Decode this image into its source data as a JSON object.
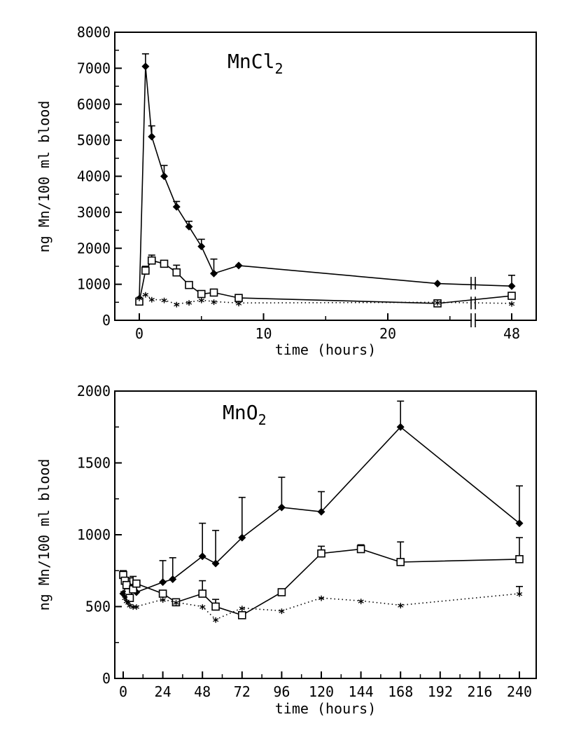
{
  "chart_data": [
    {
      "type": "line",
      "title": "MnCl",
      "title_subscript": "2",
      "xlabel": "time (hours)",
      "ylabel": "ng Mn/100 ml blood",
      "ylim": [
        0,
        8000
      ],
      "y_ticks": [
        "0",
        "1000",
        "2000",
        "3000",
        "4000",
        "5000",
        "6000",
        "7000",
        "8000"
      ],
      "x_ticks": [
        "0",
        "10",
        "20",
        "48"
      ],
      "x_axis_break": "between 24 and 48",
      "grid": false,
      "series": [
        {
          "marker": "diamond",
          "line": "solid",
          "x": [
            0,
            0.5,
            1,
            2,
            3,
            4,
            5,
            6,
            8,
            24,
            48
          ],
          "y": [
            600,
            7050,
            5100,
            4000,
            3150,
            2600,
            2050,
            1300,
            1520,
            1020,
            950
          ],
          "error_upper": [
            null,
            350,
            300,
            300,
            150,
            150,
            200,
            400,
            null,
            null,
            300
          ]
        },
        {
          "marker": "open-square",
          "line": "solid",
          "x": [
            0,
            0.5,
            1,
            2,
            3,
            4,
            5,
            6,
            8,
            24,
            48
          ],
          "y": [
            520,
            1380,
            1660,
            1570,
            1330,
            980,
            730,
            770,
            620,
            470,
            680
          ],
          "error_upper": [
            null,
            120,
            150,
            null,
            200,
            null,
            null,
            null,
            null,
            null,
            null
          ]
        },
        {
          "marker": "asterisk",
          "line": "dotted",
          "x": [
            0,
            0.5,
            1,
            2,
            3,
            4,
            5,
            6,
            8,
            24,
            48
          ],
          "y": [
            620,
            720,
            580,
            560,
            450,
            500,
            560,
            520,
            480,
            500,
            470
          ],
          "error_upper": [
            null,
            null,
            null,
            null,
            null,
            null,
            null,
            null,
            null,
            null,
            null
          ]
        }
      ]
    },
    {
      "type": "line",
      "title": "MnO",
      "title_subscript": "2",
      "xlabel": "time (hours)",
      "ylabel": "ng Mn/100 ml blood",
      "ylim": [
        0,
        2000
      ],
      "xlim": [
        -3,
        240
      ],
      "y_ticks": [
        "0",
        "500",
        "1000",
        "1500",
        "2000"
      ],
      "x_ticks": [
        "0",
        "24",
        "48",
        "72",
        "96",
        "120",
        "144",
        "168",
        "192",
        "216",
        "240"
      ],
      "grid": false,
      "series": [
        {
          "marker": "diamond",
          "line": "solid",
          "x": [
            0,
            1,
            2,
            3,
            4,
            6,
            8,
            24,
            30,
            48,
            56,
            72,
            96,
            120,
            168,
            240
          ],
          "y": [
            590,
            580,
            600,
            610,
            640,
            640,
            600,
            670,
            690,
            850,
            800,
            980,
            1190,
            1160,
            1750,
            1080
          ],
          "error_upper": [
            null,
            null,
            null,
            null,
            60,
            70,
            null,
            150,
            150,
            230,
            230,
            280,
            210,
            140,
            180,
            260
          ]
        },
        {
          "marker": "open-square",
          "line": "solid",
          "x": [
            0,
            1,
            2,
            3,
            4,
            6,
            8,
            24,
            32,
            48,
            56,
            72,
            96,
            120,
            144,
            168,
            240
          ],
          "y": [
            720,
            680,
            650,
            600,
            560,
            620,
            660,
            590,
            530,
            590,
            500,
            440,
            600,
            870,
            900,
            810,
            830
          ],
          "error_upper": [
            30,
            null,
            null,
            null,
            null,
            null,
            null,
            null,
            null,
            90,
            50,
            null,
            null,
            50,
            30,
            140,
            150
          ]
        },
        {
          "marker": "asterisk",
          "line": "dotted",
          "x": [
            0,
            1,
            2,
            3,
            4,
            6,
            8,
            24,
            32,
            48,
            56,
            72,
            96,
            120,
            144,
            168,
            240
          ],
          "y": [
            600,
            560,
            540,
            530,
            510,
            500,
            500,
            550,
            530,
            500,
            410,
            490,
            470,
            560,
            540,
            510,
            590
          ],
          "error_upper": [
            null,
            null,
            null,
            null,
            null,
            null,
            null,
            null,
            null,
            null,
            null,
            null,
            null,
            null,
            null,
            null,
            50
          ]
        }
      ]
    }
  ]
}
